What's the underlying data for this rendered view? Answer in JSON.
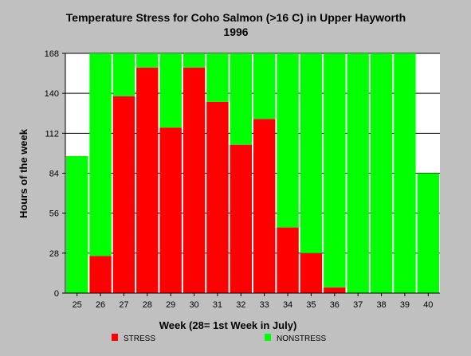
{
  "chart_data": {
    "type": "bar",
    "stacked": true,
    "title": "Temperature Stress for Coho Salmon (>16 C) in Upper Hayworth",
    "subtitle": "1996",
    "xlabel": "Week (28= 1st Week in July)",
    "ylabel": "Hours of the week",
    "ylim": [
      0,
      168
    ],
    "yticks": [
      "0",
      "28",
      "56",
      "84",
      "112",
      "140",
      "168"
    ],
    "categories": [
      "25",
      "26",
      "27",
      "28",
      "29",
      "30",
      "31",
      "32",
      "33",
      "34",
      "35",
      "36",
      "37",
      "38",
      "39",
      "40"
    ],
    "series": [
      {
        "name": "STRESS",
        "color": "#ff0000",
        "values": [
          0,
          26,
          138,
          158,
          116,
          158,
          134,
          104,
          122,
          46,
          28,
          4,
          0,
          0,
          0,
          0
        ]
      },
      {
        "name": "NONSTRESS",
        "color": "#00ff00",
        "values": [
          96,
          142,
          30,
          10,
          52,
          10,
          34,
          64,
          46,
          122,
          140,
          164,
          168,
          168,
          168,
          84
        ]
      }
    ],
    "grid": "horizontal",
    "legend_position": "bottom",
    "plot_background": "#ffffff",
    "page_background": "#c0c0c0"
  }
}
